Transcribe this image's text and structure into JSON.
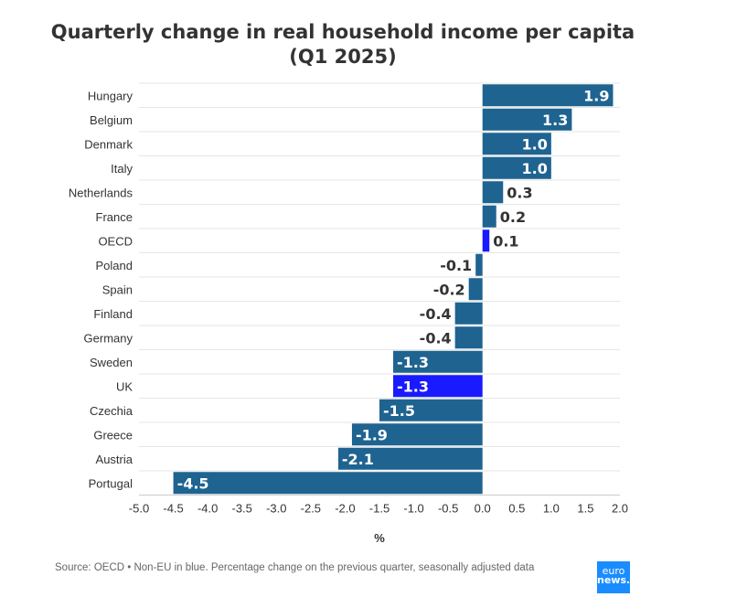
{
  "chart_data": {
    "type": "bar",
    "orientation": "horizontal",
    "title": "Quarterly change in real household income per capita",
    "subtitle": "(Q1 2025)",
    "xlabel": "%",
    "ylabel": "",
    "xlim": [
      -5.0,
      2.0
    ],
    "xticks": [
      "-5.0",
      "-4.5",
      "-4.0",
      "-3.5",
      "-3.0",
      "-2.5",
      "-2.0",
      "-1.5",
      "-1.0",
      "-0.5",
      "0.0",
      "0.5",
      "1.0",
      "1.5",
      "2.0"
    ],
    "grid": true,
    "categories": [
      "Hungary",
      "Belgium",
      "Denmark",
      "Italy",
      "Netherlands",
      "France",
      "OECD",
      "Poland",
      "Spain",
      "Finland",
      "Germany",
      "Sweden",
      "UK",
      "Czechia",
      "Greece",
      "Austria",
      "Portugal"
    ],
    "values": [
      1.9,
      1.3,
      1.0,
      1.0,
      0.3,
      0.2,
      0.1,
      -0.1,
      -0.2,
      -0.4,
      -0.4,
      -1.3,
      -1.3,
      -1.5,
      -1.9,
      -2.1,
      -4.5
    ],
    "labels": [
      "1.9",
      "1.3",
      "1.0",
      "1.0",
      "0.3",
      "0.2",
      "0.1",
      "-0.1",
      "-0.2",
      "-0.4",
      "-0.4",
      "-1.3",
      "-1.3",
      "-1.5",
      "-1.9",
      "-2.1",
      "-4.5"
    ],
    "non_eu": [
      "OECD",
      "UK"
    ],
    "colors": {
      "eu": "#1f6391",
      "non_eu": "#1a1aff",
      "label_dark": "#333333",
      "label_light": "#ffffff"
    }
  },
  "footer": {
    "source": "Source: OECD • Non-EU in blue. Percentage change on the previous quarter, seasonally adjusted data",
    "logo_top": "euro",
    "logo_bottom": "news."
  }
}
